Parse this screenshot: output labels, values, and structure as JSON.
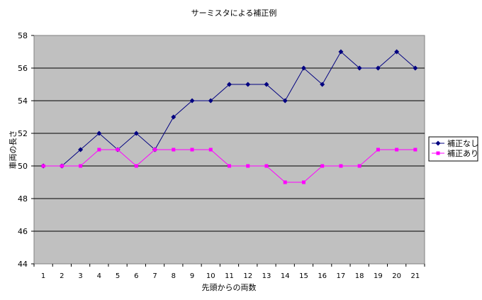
{
  "chart_data": {
    "type": "line",
    "title": "サーミスタによる補正例",
    "xlabel": "先頭からの両数",
    "ylabel": "車両の長さ",
    "categories": [
      "1",
      "2",
      "3",
      "4",
      "5",
      "6",
      "7",
      "8",
      "9",
      "10",
      "11",
      "12",
      "13",
      "14",
      "15",
      "16",
      "17",
      "18",
      "19",
      "20",
      "21"
    ],
    "ylim": [
      44,
      58
    ],
    "yticks": [
      44,
      46,
      48,
      50,
      52,
      54,
      56,
      58
    ],
    "grid": true,
    "legend_position": "right",
    "plot_background": "#c0c0c0",
    "series": [
      {
        "name": "補正なし",
        "color": "#000080",
        "marker": "diamond",
        "values": [
          50,
          50,
          51,
          52,
          51,
          52,
          51,
          53,
          54,
          54,
          55,
          55,
          55,
          54,
          56,
          55,
          57,
          56,
          56,
          57,
          56
        ]
      },
      {
        "name": "補正あり",
        "color": "#ff00ff",
        "marker": "square",
        "values": [
          50,
          50,
          50,
          51,
          51,
          50,
          51,
          51,
          51,
          51,
          50,
          50,
          50,
          49,
          49,
          50,
          50,
          50,
          51,
          51,
          51
        ]
      }
    ]
  }
}
